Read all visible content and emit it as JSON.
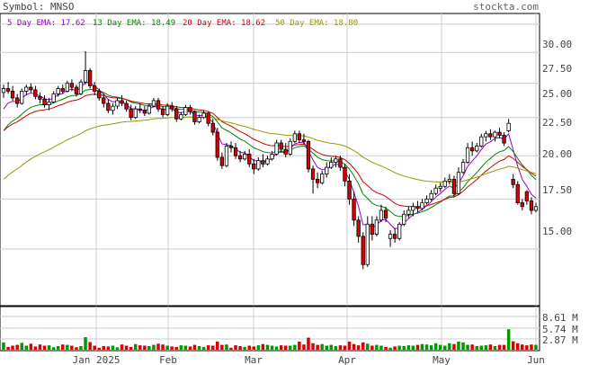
{
  "header": {
    "symbol_label": "Symbol: MNSO",
    "site": "stockta.com"
  },
  "legend": [
    {
      "label": "5 Day EMA:",
      "value": "17.62",
      "color": "#9900cc"
    },
    {
      "label": "13 Day EMA:",
      "value": "18.49",
      "color": "#008800"
    },
    {
      "label": "20 Day EMA:",
      "value": "18.62",
      "color": "#cc0000"
    },
    {
      "label": "50 Day EMA:",
      "value": "18.80",
      "color": "#999900"
    }
  ],
  "colors": {
    "up_candle": "#ffffff",
    "down_candle": "#dd0000",
    "up_volume": "#009900",
    "down_volume": "#dd0000",
    "grid": "#cccccc",
    "text": "#444444",
    "site_text": "#666666"
  },
  "chart_data": {
    "type": "candlestick",
    "y_ticks": [
      "30.00",
      "27.50",
      "25.00",
      "22.50",
      "20.00",
      "17.50",
      "15.00"
    ],
    "volume_ticks": [
      "8.61 M",
      "5.74 M",
      "2.87 M"
    ],
    "x_labels": [
      "Jan 2025",
      "Feb",
      "Mar",
      "Apr",
      "May",
      "Jun"
    ],
    "grid": true,
    "price_range": [
      12.6,
      31.0
    ],
    "volume_max_millions": 10.5,
    "ohlc": [
      [
        24.3,
        24.9,
        23.9,
        24.6
      ],
      [
        24.6,
        25.1,
        24.2,
        24.4
      ],
      [
        24.4,
        24.8,
        23.7,
        23.9
      ],
      [
        23.9,
        24.2,
        23.2,
        23.5
      ],
      [
        23.5,
        24.6,
        23.4,
        24.4
      ],
      [
        24.4,
        24.9,
        24.1,
        24.7
      ],
      [
        24.7,
        25.0,
        24.3,
        24.5
      ],
      [
        24.5,
        24.8,
        23.8,
        24.0
      ],
      [
        24.0,
        24.3,
        23.5,
        23.8
      ],
      [
        23.8,
        24.1,
        23.2,
        23.4
      ],
      [
        23.4,
        23.9,
        23.0,
        23.6
      ],
      [
        23.6,
        24.4,
        23.5,
        24.2
      ],
      [
        24.2,
        24.8,
        24.0,
        24.6
      ],
      [
        24.6,
        24.9,
        24.2,
        24.4
      ],
      [
        24.4,
        25.2,
        24.3,
        25.0
      ],
      [
        25.0,
        25.3,
        24.4,
        24.7
      ],
      [
        24.7,
        24.9,
        24.0,
        24.2
      ],
      [
        24.2,
        25.3,
        24.1,
        25.1
      ],
      [
        25.1,
        27.6,
        24.9,
        26.0
      ],
      [
        26.0,
        26.2,
        24.6,
        24.8
      ],
      [
        24.8,
        25.1,
        24.1,
        24.4
      ],
      [
        24.4,
        24.6,
        23.7,
        23.9
      ],
      [
        23.9,
        24.2,
        23.2,
        23.5
      ],
      [
        23.5,
        23.8,
        22.8,
        23.0
      ],
      [
        23.0,
        23.5,
        22.7,
        23.3
      ],
      [
        23.3,
        23.9,
        23.1,
        23.7
      ],
      [
        23.7,
        24.1,
        23.3,
        23.5
      ],
      [
        23.5,
        23.7,
        22.9,
        23.1
      ],
      [
        23.1,
        23.4,
        22.3,
        22.5
      ],
      [
        22.5,
        23.3,
        22.4,
        23.1
      ],
      [
        23.1,
        23.5,
        22.8,
        23.0
      ],
      [
        23.0,
        23.3,
        22.6,
        22.8
      ],
      [
        22.8,
        23.5,
        22.7,
        23.3
      ],
      [
        23.3,
        23.9,
        23.2,
        23.7
      ],
      [
        23.7,
        23.9,
        22.9,
        23.1
      ],
      [
        23.1,
        23.3,
        22.5,
        22.7
      ],
      [
        22.7,
        23.5,
        22.6,
        23.3
      ],
      [
        23.3,
        23.6,
        22.9,
        23.1
      ],
      [
        23.1,
        23.3,
        22.2,
        22.4
      ],
      [
        22.4,
        22.9,
        22.3,
        22.7
      ],
      [
        22.7,
        23.4,
        22.6,
        23.2
      ],
      [
        23.2,
        23.4,
        22.7,
        22.9
      ],
      [
        22.9,
        23.0,
        22.0,
        22.2
      ],
      [
        22.2,
        22.7,
        22.1,
        22.5
      ],
      [
        22.5,
        23.0,
        22.4,
        22.8
      ],
      [
        22.8,
        22.9,
        21.9,
        22.1
      ],
      [
        22.1,
        22.4,
        21.3,
        21.5
      ],
      [
        21.5,
        21.8,
        19.7,
        19.9
      ],
      [
        19.9,
        20.2,
        19.2,
        19.4
      ],
      [
        19.4,
        20.8,
        19.3,
        20.6
      ],
      [
        20.6,
        20.9,
        20.2,
        20.5
      ],
      [
        20.5,
        20.8,
        19.8,
        20.0
      ],
      [
        20.0,
        20.3,
        19.6,
        19.8
      ],
      [
        19.8,
        20.3,
        19.7,
        20.1
      ],
      [
        20.1,
        20.4,
        19.3,
        19.5
      ],
      [
        19.5,
        19.8,
        18.9,
        19.2
      ],
      [
        19.2,
        19.9,
        19.1,
        19.7
      ],
      [
        19.7,
        20.1,
        19.3,
        19.5
      ],
      [
        19.5,
        20.0,
        19.4,
        19.8
      ],
      [
        19.8,
        20.3,
        19.7,
        20.1
      ],
      [
        20.1,
        21.0,
        20.0,
        20.8
      ],
      [
        20.8,
        21.0,
        20.2,
        20.4
      ],
      [
        20.4,
        20.8,
        19.9,
        20.1
      ],
      [
        20.1,
        21.1,
        20.0,
        20.9
      ],
      [
        20.9,
        21.6,
        20.8,
        21.4
      ],
      [
        21.4,
        21.6,
        20.8,
        21.0
      ],
      [
        21.0,
        21.4,
        20.7,
        20.9
      ],
      [
        20.9,
        21.0,
        19.0,
        19.2
      ],
      [
        19.2,
        19.4,
        17.8,
        18.6
      ],
      [
        18.6,
        19.0,
        18.1,
        18.4
      ],
      [
        18.4,
        19.1,
        18.3,
        18.9
      ],
      [
        18.9,
        19.6,
        18.7,
        19.3
      ],
      [
        19.3,
        19.9,
        19.2,
        19.6
      ],
      [
        19.6,
        20.0,
        19.3,
        19.8
      ],
      [
        19.8,
        20.0,
        19.1,
        19.3
      ],
      [
        19.3,
        19.5,
        18.2,
        18.5
      ],
      [
        18.5,
        18.9,
        17.2,
        17.5
      ],
      [
        17.5,
        17.9,
        16.1,
        16.4
      ],
      [
        16.4,
        16.6,
        15.3,
        15.6
      ],
      [
        15.6,
        15.8,
        14.1,
        14.3
      ],
      [
        14.3,
        16.6,
        14.2,
        16.2
      ],
      [
        16.2,
        16.6,
        15.4,
        15.7
      ],
      [
        15.7,
        16.6,
        15.6,
        16.4
      ],
      [
        16.4,
        17.2,
        16.3,
        16.9
      ],
      [
        16.9,
        17.1,
        16.3,
        16.5
      ],
      [
        15.5,
        15.9,
        15.1,
        15.7
      ],
      [
        15.7,
        16.0,
        15.3,
        15.5
      ],
      [
        15.5,
        16.3,
        15.4,
        16.2
      ],
      [
        16.2,
        16.9,
        16.1,
        16.7
      ],
      [
        16.7,
        17.1,
        16.5,
        16.9
      ],
      [
        16.9,
        17.3,
        16.6,
        17.1
      ],
      [
        17.1,
        17.4,
        16.8,
        17.0
      ],
      [
        17.0,
        17.5,
        16.9,
        17.3
      ],
      [
        17.3,
        17.7,
        17.2,
        17.5
      ],
      [
        17.5,
        18.0,
        17.4,
        17.8
      ],
      [
        17.8,
        18.3,
        17.7,
        18.1
      ],
      [
        18.1,
        18.4,
        17.9,
        18.2
      ],
      [
        18.2,
        18.7,
        18.1,
        18.5
      ],
      [
        18.5,
        18.9,
        18.3,
        18.6
      ],
      [
        18.6,
        18.8,
        17.6,
        17.8
      ],
      [
        17.8,
        19.3,
        17.7,
        19.0
      ],
      [
        19.0,
        19.8,
        18.9,
        19.6
      ],
      [
        19.6,
        20.8,
        19.5,
        20.5
      ],
      [
        20.5,
        20.9,
        20.0,
        20.3
      ],
      [
        20.3,
        20.8,
        20.2,
        20.6
      ],
      [
        20.6,
        21.4,
        20.5,
        21.2
      ],
      [
        21.2,
        21.6,
        20.9,
        21.4
      ],
      [
        21.4,
        21.7,
        21.0,
        21.2
      ],
      [
        21.2,
        21.6,
        20.9,
        21.5
      ],
      [
        21.5,
        21.8,
        21.1,
        21.3
      ],
      [
        21.3,
        21.5,
        20.6,
        20.8
      ],
      [
        21.6,
        22.4,
        21.5,
        22.1
      ],
      [
        18.6,
        18.9,
        18.1,
        18.3
      ],
      [
        18.3,
        18.5,
        17.2,
        17.3
      ],
      [
        17.3,
        17.5,
        16.9,
        17.1
      ],
      [
        17.9,
        18.0,
        17.2,
        17.4
      ],
      [
        17.4,
        17.6,
        16.7,
        16.9
      ],
      [
        16.9,
        17.3,
        16.8,
        17.1
      ]
    ],
    "volume": [
      1.8,
      0.7,
      1.0,
      1.2,
      1.7,
      1.0,
      1.5,
      0.8,
      1.3,
      1.0,
      1.1,
      0.6,
      0.9,
      1.3,
      1.2,
      1.0,
      0.6,
      0.9,
      3.1,
      1.9,
      1.0,
      0.5,
      0.9,
      0.8,
      1.0,
      0.6,
      1.3,
      1.0,
      0.7,
      1.4,
      1.1,
      1.0,
      0.9,
      1.2,
      1.5,
      1.3,
      1.0,
      0.8,
      0.7,
      1.1,
      1.0,
      0.8,
      1.2,
      0.9,
      0.7,
      1.1,
      1.0,
      2.0,
      1.2,
      1.3,
      0.5,
      1.1,
      0.9,
      0.7,
      1.0,
      0.8,
      1.1,
      1.4,
      1.2,
      1.0,
      0.8,
      1.1,
      1.0,
      1.0,
      1.2,
      2.0,
      1.3,
      3.0,
      1.6,
      1.2,
      1.4,
      1.0,
      1.2,
      0.9,
      1.1,
      1.0,
      2.0,
      1.4,
      1.1,
      1.8,
      1.5,
      1.0,
      1.2,
      1.0,
      0.7,
      0.5,
      0.8,
      1.0,
      0.9,
      1.1,
      1.0,
      1.2,
      1.4,
      1.3,
      1.1,
      1.6,
      1.2,
      1.0,
      1.6,
      1.4,
      2.0,
      1.8,
      1.2,
      1.3,
      0.9,
      1.0,
      1.1,
      1.3,
      0.9,
      1.2,
      1.2,
      5.1,
      2.1,
      1.6,
      1.3,
      1.1,
      1.3,
      1.2
    ],
    "ema": [
      {
        "name": "5 Day EMA",
        "color": "#9900cc",
        "period": 5
      },
      {
        "name": "13 Day EMA",
        "color": "#008800",
        "period": 13
      },
      {
        "name": "20 Day EMA",
        "color": "#cc0000",
        "period": 20
      },
      {
        "name": "50 Day EMA",
        "color": "#999900",
        "period": 50
      }
    ]
  }
}
